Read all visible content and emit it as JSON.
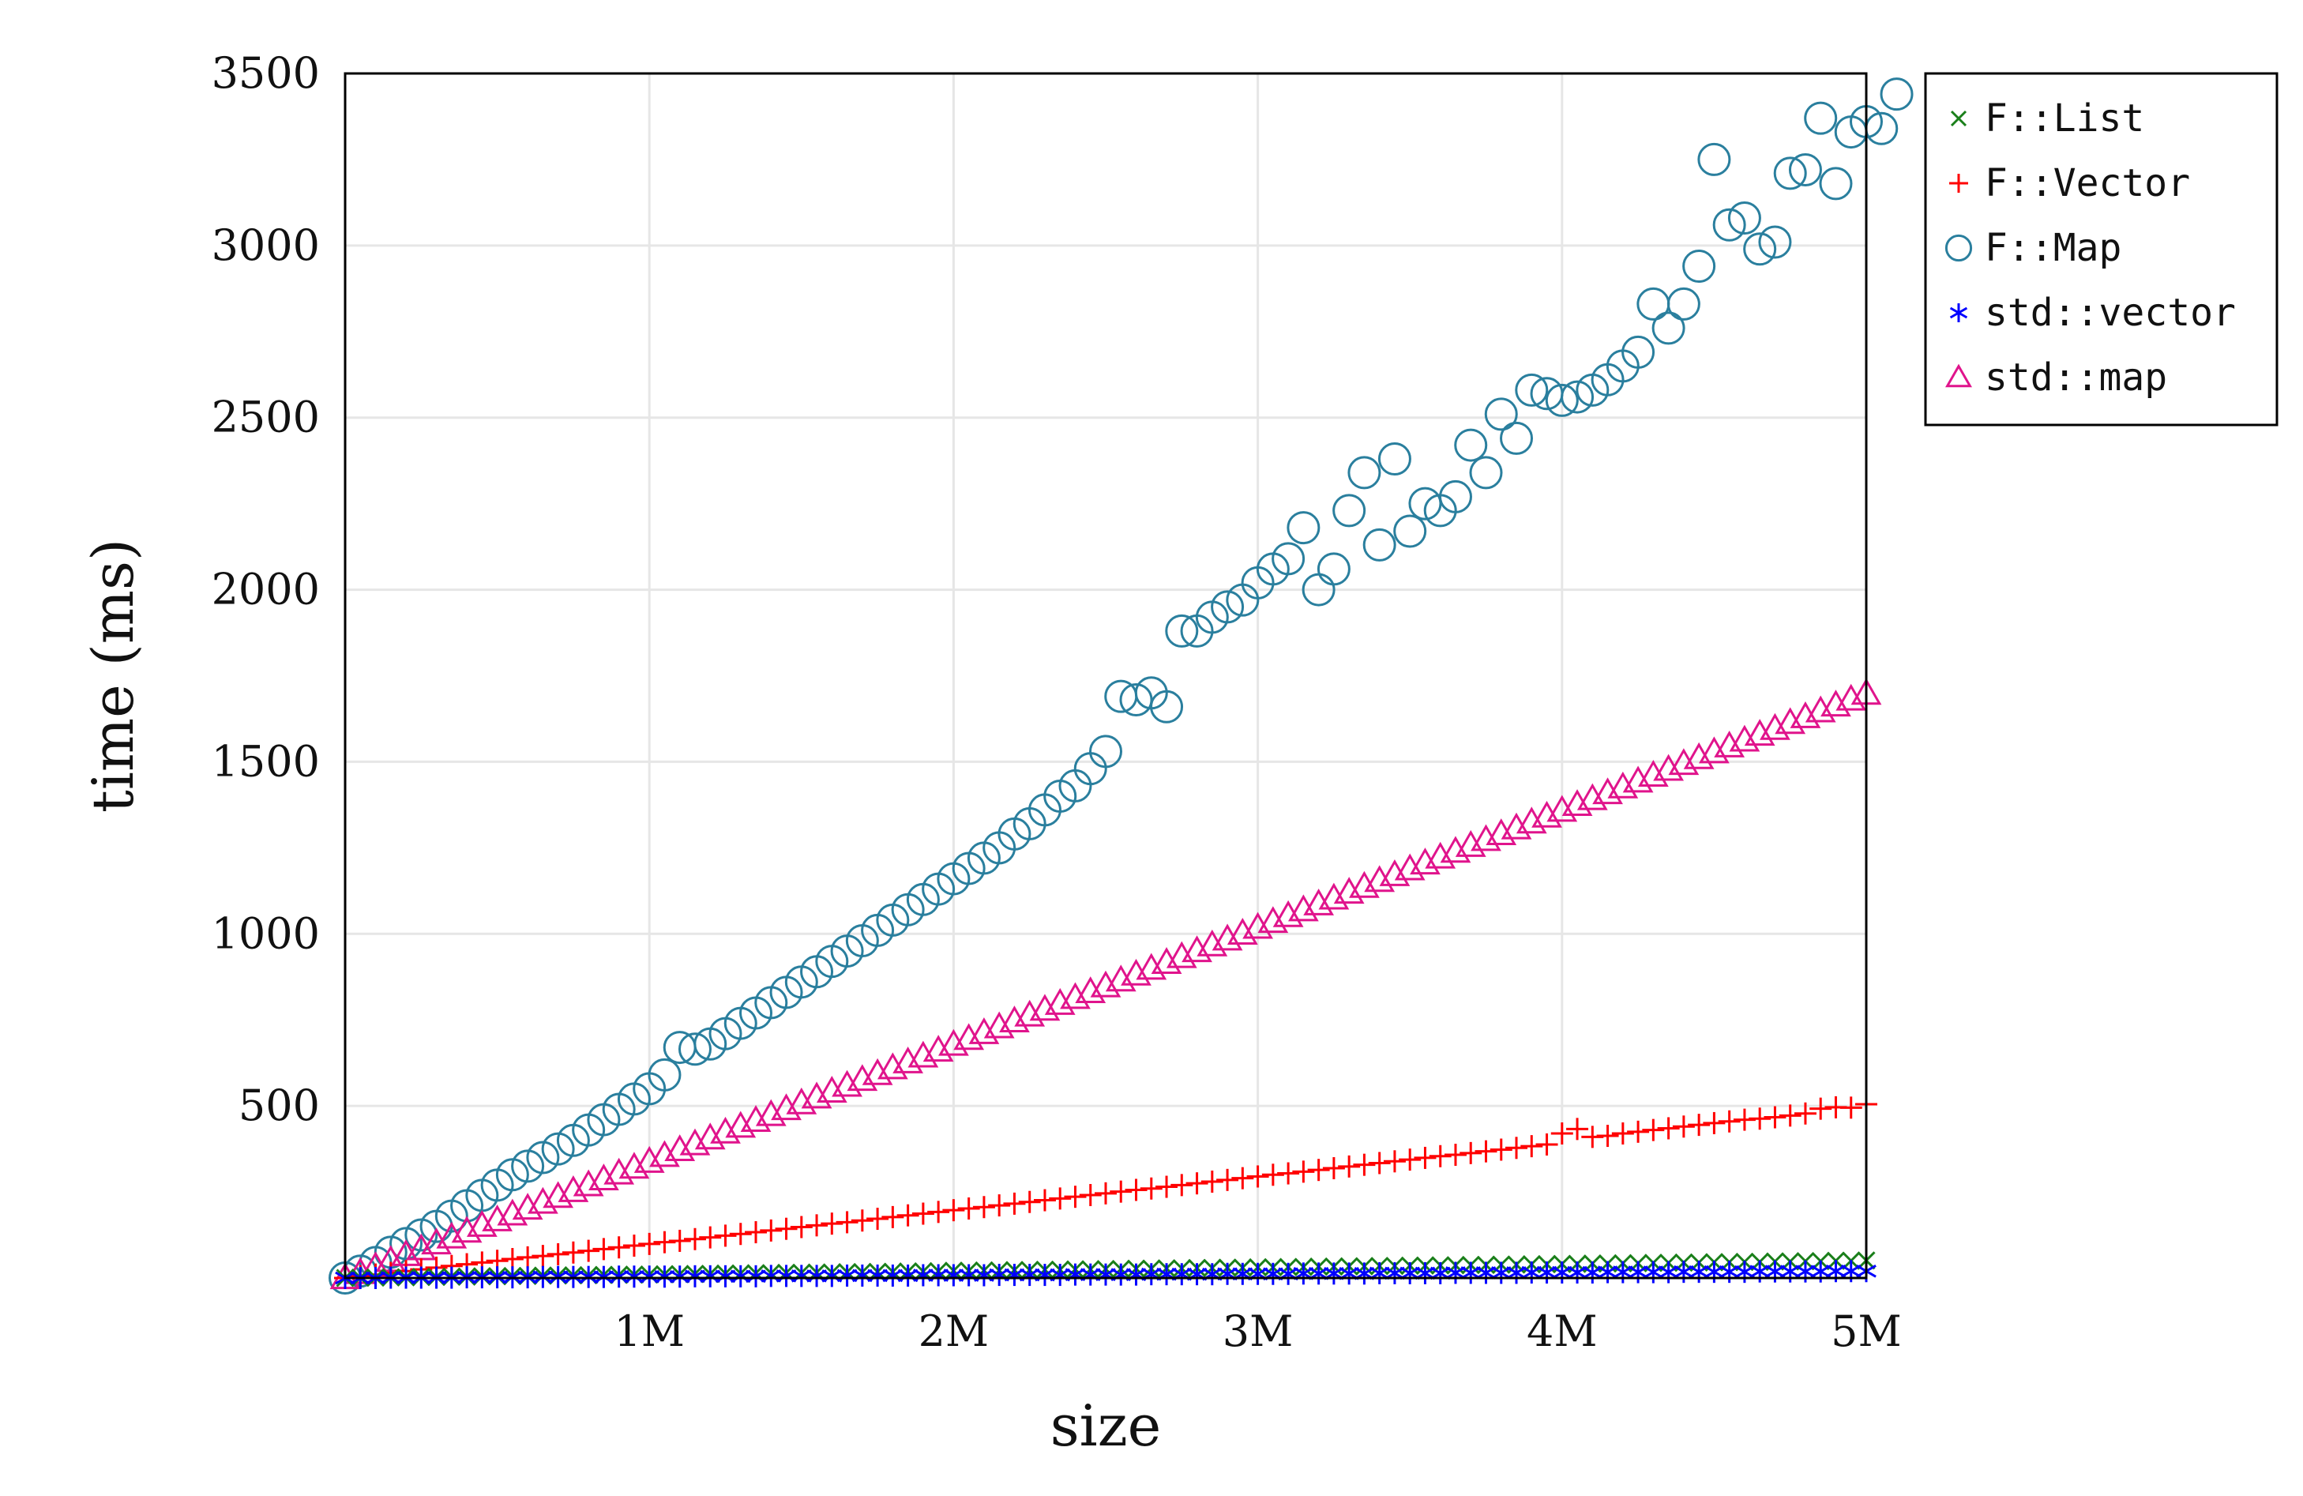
{
  "chart_data": {
    "type": "scatter",
    "title": "",
    "xlabel": "size",
    "ylabel": "time (ms)",
    "xlim": [
      0,
      5000000
    ],
    "ylim": [
      0,
      3500
    ],
    "x_ticks": [
      {
        "value": 1000000,
        "label": "1M"
      },
      {
        "value": 2000000,
        "label": "2M"
      },
      {
        "value": 3000000,
        "label": "3M"
      },
      {
        "value": 4000000,
        "label": "4M"
      },
      {
        "value": 5000000,
        "label": "5M"
      }
    ],
    "y_ticks": [
      {
        "value": 500,
        "label": "500"
      },
      {
        "value": 1000,
        "label": "1000"
      },
      {
        "value": 1500,
        "label": "1500"
      },
      {
        "value": 2000,
        "label": "2000"
      },
      {
        "value": 2500,
        "label": "2500"
      },
      {
        "value": 3000,
        "label": "3000"
      },
      {
        "value": 3500,
        "label": "3500"
      }
    ],
    "grid": true,
    "legend_position": "outside-top-right",
    "series": [
      {
        "name": "F::List",
        "marker": "x",
        "color": "#1a7f1a",
        "x_start": 0,
        "x_step": 50000,
        "y_values": [
          0,
          1,
          1,
          2,
          2,
          3,
          3,
          4,
          4,
          5,
          5,
          6,
          6,
          7,
          7,
          8,
          8,
          9,
          9,
          10,
          10,
          11,
          11,
          12,
          12,
          13,
          13,
          14,
          14,
          15,
          15,
          16,
          16,
          17,
          17,
          18,
          18,
          19,
          19,
          20,
          21,
          21,
          22,
          22,
          23,
          23,
          24,
          24,
          25,
          25,
          26,
          26,
          27,
          27,
          28,
          28,
          29,
          29,
          30,
          30,
          31,
          31,
          32,
          32,
          33,
          33,
          34,
          34,
          35,
          35,
          36,
          36,
          37,
          37,
          38,
          38,
          39,
          39,
          40,
          40,
          41,
          41,
          42,
          42,
          43,
          43,
          44,
          44,
          45,
          45,
          46,
          46,
          47,
          47,
          48,
          48,
          49,
          49,
          50,
          50,
          51
        ]
      },
      {
        "name": "F::Vector",
        "marker": "+",
        "color": "#ff0000",
        "x_start": 0,
        "x_step": 50000,
        "y_values": [
          0,
          5,
          10,
          15,
          20,
          25,
          30,
          35,
          40,
          45,
          50,
          55,
          60,
          64,
          69,
          74,
          79,
          84,
          89,
          94,
          99,
          104,
          108,
          113,
          118,
          123,
          128,
          133,
          138,
          143,
          148,
          153,
          158,
          162,
          167,
          172,
          177,
          182,
          187,
          192,
          197,
          202,
          206,
          211,
          216,
          221,
          226,
          231,
          236,
          241,
          246,
          251,
          256,
          260,
          265,
          270,
          275,
          280,
          285,
          290,
          295,
          300,
          304,
          309,
          314,
          319,
          324,
          329,
          334,
          339,
          344,
          349,
          354,
          358,
          363,
          368,
          373,
          378,
          383,
          388,
          420,
          433,
          410,
          413,
          420,
          425,
          430,
          435,
          440,
          445,
          450,
          455,
          460,
          463,
          467,
          472,
          478,
          492,
          496,
          495,
          505
        ]
      },
      {
        "name": "F::Map",
        "marker": "o",
        "color": "#2a7f9e",
        "x_start": 0,
        "x_step": 50000,
        "y_values": [
          0,
          20,
          45,
          75,
          100,
          125,
          150,
          180,
          210,
          240,
          270,
          300,
          325,
          350,
          375,
          400,
          430,
          460,
          490,
          520,
          550,
          590,
          670,
          665,
          680,
          710,
          740,
          770,
          800,
          830,
          860,
          890,
          920,
          950,
          980,
          1010,
          1040,
          1070,
          1100,
          1130,
          1160,
          1190,
          1220,
          1250,
          1290,
          1320,
          1360,
          1400,
          1430,
          1480,
          1530,
          1690,
          1680,
          1700,
          1660,
          1880,
          1880,
          1920,
          1950,
          1970,
          2020,
          2060,
          2090,
          2180,
          2000,
          2060,
          2230,
          2340,
          2130,
          2380,
          2170,
          2250,
          2230,
          2270,
          2420,
          2340,
          2510,
          2440,
          2580,
          2570,
          2550,
          2560,
          2580,
          2610,
          2650,
          2690,
          2830,
          2760,
          2830,
          2940,
          3250,
          3060,
          3080,
          2990,
          3010,
          3210,
          3220,
          3370,
          3180,
          3330,
          3360,
          3340,
          3440
        ]
      },
      {
        "name": "std::vector",
        "marker": "*",
        "color": "#0000ff",
        "x_start": 0,
        "x_step": 50000,
        "y_values": [
          0,
          0,
          0,
          1,
          1,
          1,
          1,
          1,
          2,
          2,
          2,
          2,
          2,
          3,
          3,
          3,
          3,
          3,
          4,
          4,
          4,
          4,
          4,
          5,
          5,
          5,
          5,
          5,
          6,
          6,
          6,
          6,
          6,
          7,
          7,
          7,
          7,
          7,
          8,
          8,
          8,
          8,
          8,
          9,
          9,
          9,
          9,
          9,
          10,
          10,
          10,
          10,
          10,
          11,
          11,
          11,
          11,
          11,
          12,
          12,
          12,
          12,
          12,
          13,
          13,
          13,
          13,
          13,
          14,
          14,
          14,
          14,
          14,
          15,
          15,
          15,
          15,
          15,
          16,
          16,
          16,
          16,
          16,
          17,
          17,
          17,
          17,
          17,
          18,
          18,
          18,
          18,
          18,
          19,
          19,
          19,
          19,
          19,
          20,
          20,
          20
        ]
      },
      {
        "name": "std::map",
        "marker": "triangle",
        "color": "#e0148c",
        "x_start": 0,
        "x_step": 50000,
        "y_values": [
          0,
          15,
          32,
          50,
          67,
          84,
          101,
          118,
          135,
          152,
          168,
          185,
          202,
          219,
          236,
          253,
          270,
          287,
          304,
          321,
          338,
          355,
          372,
          389,
          406,
          423,
          440,
          457,
          474,
          491,
          508,
          525,
          542,
          559,
          576,
          593,
          610,
          627,
          644,
          661,
          678,
          695,
          712,
          729,
          746,
          763,
          780,
          797,
          814,
          831,
          848,
          865,
          882,
          899,
          916,
          933,
          950,
          967,
          984,
          1001,
          1018,
          1035,
          1052,
          1069,
          1086,
          1103,
          1120,
          1137,
          1154,
          1171,
          1188,
          1205,
          1222,
          1239,
          1256,
          1273,
          1290,
          1307,
          1324,
          1341,
          1358,
          1375,
          1392,
          1409,
          1426,
          1443,
          1460,
          1477,
          1494,
          1511,
          1528,
          1545,
          1562,
          1579,
          1596,
          1613,
          1630,
          1647,
          1664,
          1681,
          1698
        ]
      }
    ]
  }
}
